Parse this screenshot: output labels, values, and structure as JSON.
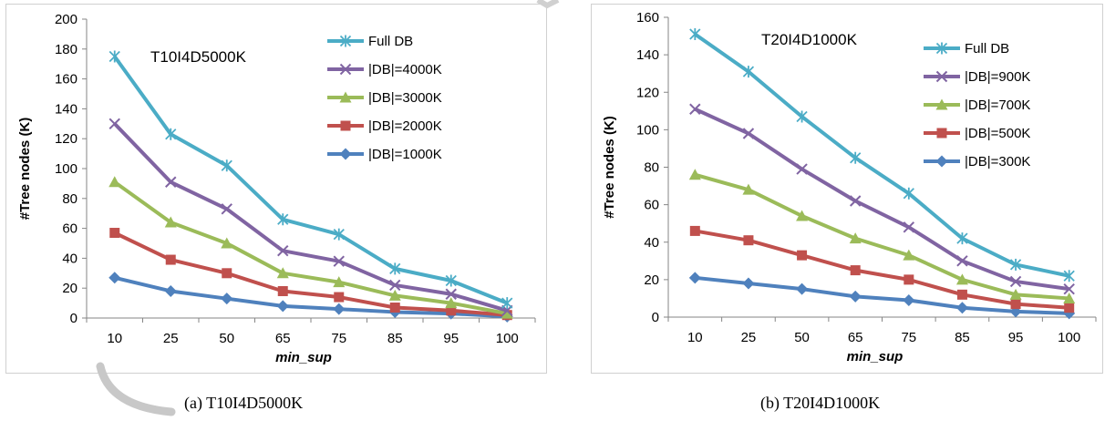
{
  "chart_data": [
    {
      "type": "line",
      "panel": "a",
      "caption": "(a) T10I4D5000K",
      "title": "T10I4D5000K",
      "xlabel": "min_sup",
      "ylabel": "#Tree nodes (K)",
      "categories": [
        "10",
        "25",
        "50",
        "65",
        "75",
        "85",
        "95",
        "100"
      ],
      "ylim": [
        0,
        200
      ],
      "yticks": [
        0,
        20,
        40,
        60,
        80,
        100,
        120,
        140,
        160,
        180,
        200
      ],
      "grid": false,
      "legend_position": "top-right",
      "series": [
        {
          "name": "Full DB",
          "marker": "asterisk",
          "color": "#4bacc6",
          "values": [
            175,
            123,
            102,
            66,
            56,
            33,
            25,
            10
          ]
        },
        {
          "name": "|DB|=4000K",
          "marker": "x",
          "color": "#8064a2",
          "values": [
            130,
            91,
            73,
            45,
            38,
            22,
            16,
            5
          ]
        },
        {
          "name": "|DB|=3000K",
          "marker": "triangle",
          "color": "#9bbb59",
          "values": [
            91,
            64,
            50,
            30,
            24,
            15,
            10,
            3
          ]
        },
        {
          "name": "|DB|=2000K",
          "marker": "square",
          "color": "#c0504d",
          "values": [
            57,
            39,
            30,
            18,
            14,
            7,
            5,
            2
          ]
        },
        {
          "name": "|DB|=1000K",
          "marker": "diamond",
          "color": "#4f81bd",
          "values": [
            27,
            18,
            13,
            8,
            6,
            4,
            3,
            1
          ]
        }
      ]
    },
    {
      "type": "line",
      "panel": "b",
      "caption": "(b) T20I4D1000K",
      "title": "T20I4D1000K",
      "xlabel": "min_sup",
      "ylabel": "#Tree nodes (K)",
      "categories": [
        "10",
        "25",
        "50",
        "65",
        "75",
        "85",
        "95",
        "100"
      ],
      "ylim": [
        0,
        160
      ],
      "yticks": [
        0,
        20,
        40,
        60,
        80,
        100,
        120,
        140,
        160
      ],
      "grid": false,
      "legend_position": "top-right",
      "series": [
        {
          "name": "Full DB",
          "marker": "asterisk",
          "color": "#4bacc6",
          "values": [
            151,
            131,
            107,
            85,
            66,
            42,
            28,
            22
          ]
        },
        {
          "name": "|DB|=900K",
          "marker": "x",
          "color": "#8064a2",
          "values": [
            111,
            98,
            79,
            62,
            48,
            30,
            19,
            15
          ]
        },
        {
          "name": "|DB|=700K",
          "marker": "triangle",
          "color": "#9bbb59",
          "values": [
            76,
            68,
            54,
            42,
            33,
            20,
            12,
            10
          ]
        },
        {
          "name": "|DB|=500K",
          "marker": "square",
          "color": "#c0504d",
          "values": [
            46,
            41,
            33,
            25,
            20,
            12,
            7,
            5
          ]
        },
        {
          "name": "|DB|=300K",
          "marker": "diamond",
          "color": "#4f81bd",
          "values": [
            21,
            18,
            15,
            11,
            9,
            5,
            3,
            2
          ]
        }
      ]
    }
  ]
}
